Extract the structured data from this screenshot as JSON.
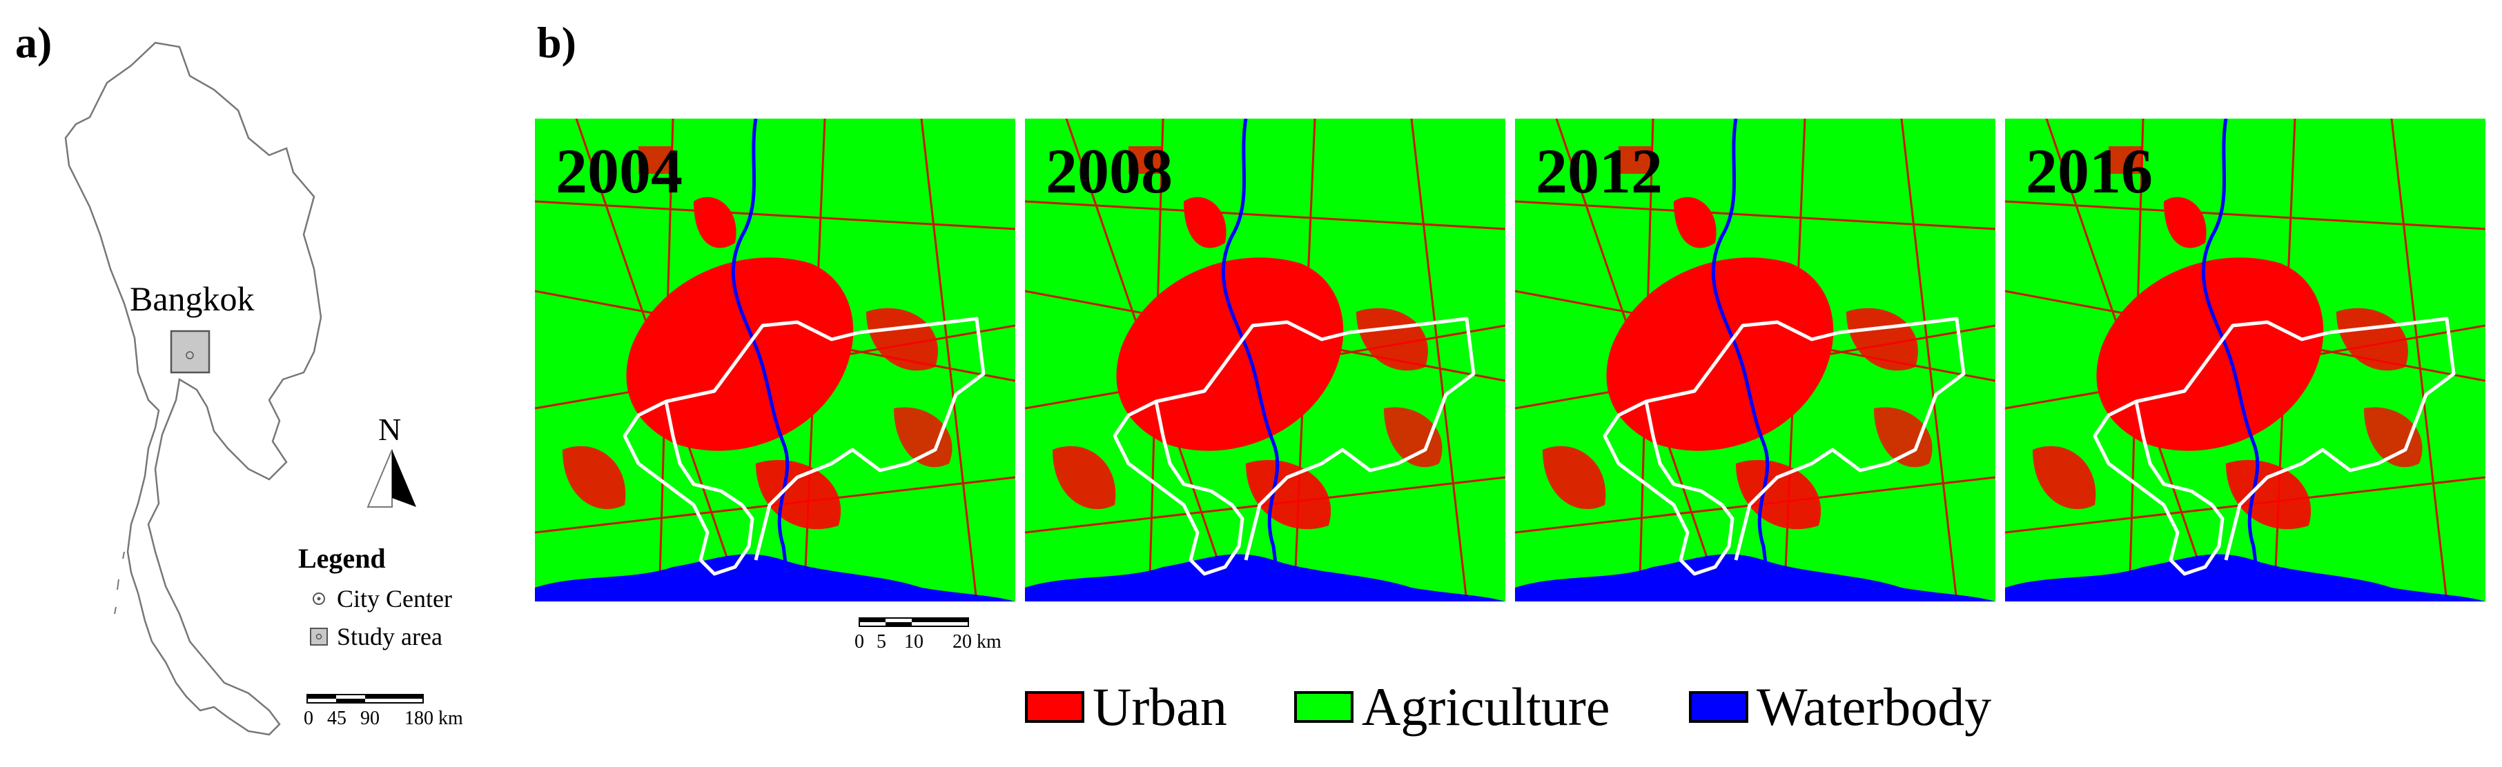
{
  "panel_a": {
    "label": "a)",
    "city_label": "Bangkok",
    "north_label": "N",
    "legend": {
      "title": "Legend",
      "items": [
        {
          "icon": "city-center-icon",
          "label": "City Center"
        },
        {
          "icon": "study-area-icon",
          "label": "Study area"
        }
      ]
    },
    "scale_bar": {
      "ticks": [
        "0",
        "45",
        "90",
        "180 km"
      ]
    }
  },
  "panel_b": {
    "label": "b)",
    "years": [
      "2004",
      "2008",
      "2012",
      "2016"
    ],
    "scale_bar": {
      "ticks": [
        "0",
        "5",
        "10",
        "20 km"
      ]
    }
  },
  "land_cover_legend": [
    {
      "label": "Urban",
      "color": "#ff0000"
    },
    {
      "label": "Agriculture",
      "color": "#00ff00"
    },
    {
      "label": "Waterbody",
      "color": "#0000ff"
    }
  ]
}
